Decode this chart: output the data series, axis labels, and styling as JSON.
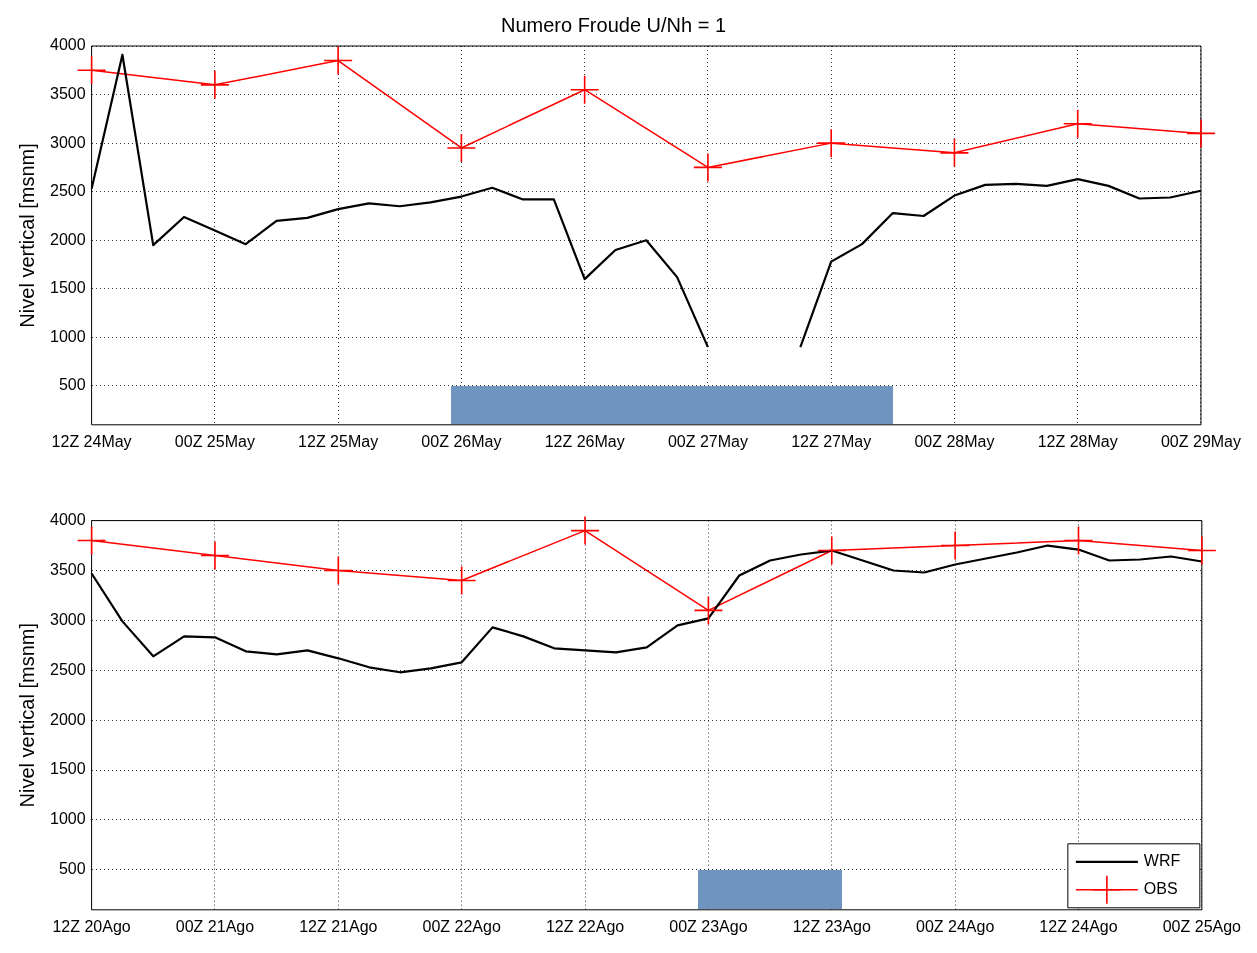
{
  "chart_data": [
    {
      "type": "line",
      "title": "Numero Froude U/Nh = 1",
      "ylabel": "Nivel vertical [msnm]",
      "categories": [
        "12Z 24May",
        null,
        null,
        null,
        "00Z 25May",
        null,
        null,
        null,
        "12Z 25May",
        null,
        null,
        null,
        "00Z 26May",
        null,
        null,
        null,
        "12Z 26May",
        null,
        null,
        null,
        "00Z 27May",
        null,
        null,
        null,
        "12Z 27May",
        null,
        null,
        null,
        "00Z 28May",
        null,
        null,
        null,
        "12Z 28May",
        null,
        null,
        null,
        "00Z 29May"
      ],
      "ylim": [
        100,
        4000
      ],
      "yticks": [
        500,
        1000,
        1500,
        2000,
        2500,
        3000,
        3500,
        4000
      ],
      "grid": true,
      "legend": false,
      "series": [
        {
          "color": "#000000",
          "marker": "none",
          "values": [
            2530,
            3910,
            1950,
            2240,
            2100,
            1960,
            2200,
            2230,
            2320,
            2380,
            2350,
            2390,
            2450,
            2540,
            2420,
            2420,
            1600,
            1900,
            2000,
            1620,
            900,
            null,
            null,
            900,
            1780,
            1960,
            2280,
            2250,
            2460,
            2570,
            2580,
            2560,
            2630,
            2560,
            2430,
            2440,
            2510
          ]
        },
        {
          "color": "#ff0000",
          "marker": "cross",
          "x": [
            "12Z 24May",
            "00Z 25May",
            "12Z 25May",
            "00Z 26May",
            "12Z 26May",
            "00Z 27May",
            "12Z 27May",
            "00Z 28May",
            "12Z 28May",
            "00Z 29May"
          ],
          "values": [
            3750,
            3600,
            3850,
            2950,
            3550,
            2750,
            3000,
            2900,
            3200,
            3100
          ]
        }
      ]
    },
    {
      "type": "line",
      "ylabel": "Nivel vertical [msnm]",
      "categories": [
        "12Z 20Ago",
        null,
        null,
        null,
        "00Z 21Ago",
        null,
        null,
        null,
        "12Z 21Ago",
        null,
        null,
        null,
        "00Z 22Ago",
        null,
        null,
        null,
        "12Z 22Ago",
        null,
        null,
        null,
        "00Z 23Ago",
        null,
        null,
        null,
        "12Z 23Ago",
        null,
        null,
        null,
        "00Z 24Ago",
        null,
        null,
        null,
        "12Z 24Ago",
        null,
        null,
        null,
        "00Z 25Ago"
      ],
      "ylim": [
        100,
        4000
      ],
      "yticks": [
        500,
        1000,
        1500,
        2000,
        2500,
        3000,
        3500,
        4000
      ],
      "grid": true,
      "legend": "bottom right",
      "series": [
        {
          "name": "WRF",
          "color": "#000000",
          "marker": "none",
          "values": [
            3470,
            2990,
            2640,
            2840,
            2830,
            2690,
            2660,
            2700,
            2620,
            2530,
            2480,
            2520,
            2580,
            2930,
            2840,
            2720,
            2700,
            2680,
            2730,
            2950,
            3020,
            3450,
            3600,
            3660,
            3700,
            3600,
            3500,
            3480,
            3560,
            3620,
            3680,
            3750,
            3710,
            3600,
            3610,
            3640,
            3590
          ]
        },
        {
          "name": "OBS",
          "color": "#ff0000",
          "marker": "cross",
          "x": [
            "12Z 20Ago",
            "00Z 21Ago",
            "12Z 21Ago",
            "00Z 22Ago",
            "12Z 22Ago",
            "00Z 23Ago",
            "12Z 23Ago",
            "00Z 24Ago",
            "12Z 24Ago",
            "00Z 25Ago"
          ],
          "values": [
            3800,
            3650,
            3500,
            3400,
            3900,
            3100,
            3700,
            3750,
            3800,
            3700
          ]
        }
      ]
    }
  ]
}
